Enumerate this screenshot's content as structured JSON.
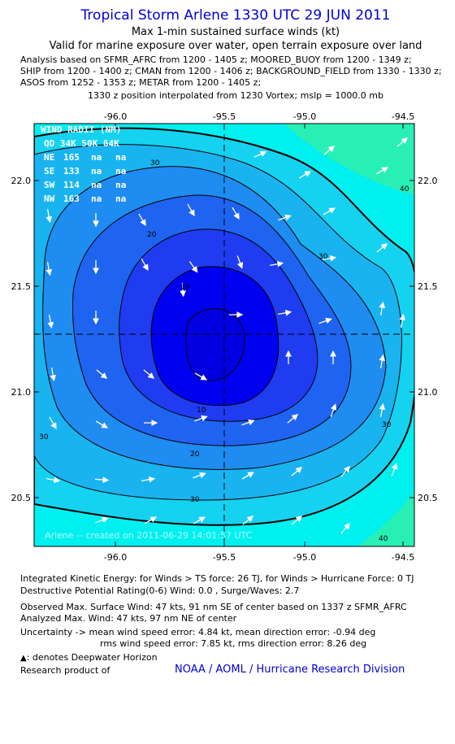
{
  "header": {
    "title": "Tropical Storm Arlene 1330 UTC 29 JUN 2011",
    "subtitle1": "Max 1-min sustained surface winds (kt)",
    "subtitle2": "Valid for marine exposure over water, open terrain exposure over land",
    "analysis_lines": [
      "Analysis based on SFMR_AFRC from 1200 - 1405 z; MOORED_BUOY from 1200 - 1349 z;",
      "SHIP from 1200 - 1400 z; CMAN from 1200 - 1406 z; BACKGROUND_FIELD from 1330 - 1330 z;",
      "ASOS from 1252 - 1353 z; METAR from 1200 - 1405 z;"
    ],
    "position_note": "1330 z position interpolated from 1230 Vortex; mslp = 1000.0 mb"
  },
  "map": {
    "x_ticks": [
      "-96.0",
      "-95.5",
      "-95.0",
      "-94.5"
    ],
    "y_ticks": [
      "22.0",
      "21.5",
      "21.0",
      "20.5"
    ],
    "wind_radii": {
      "title": "WIND RADII (NM)",
      "header": "QD  34K  50K  64K",
      "rows": [
        {
          "qd": "NE",
          "k34": "165",
          "k50": "na",
          "k64": "na"
        },
        {
          "qd": "SE",
          "k34": "133",
          "k50": "na",
          "k64": "na"
        },
        {
          "qd": "SW",
          "k34": "114",
          "k50": "na",
          "k64": "na"
        },
        {
          "qd": "NW",
          "k34": "163",
          "k50": "na",
          "k64": "na"
        }
      ]
    },
    "contour_labels": [
      "10",
      "20",
      "30",
      "40",
      "10",
      "20",
      "30",
      "30",
      "30",
      "40",
      "30"
    ],
    "watermark": "Arlene -- created on 2011-06-29 14:01:57 UTC",
    "colors": {
      "level_lt10": "#0000f0",
      "level_10_15": "#1f3cf0",
      "level_15_20": "#1e64f0",
      "level_20_25": "#1e8cf0",
      "level_25_30": "#19b4f0",
      "level_30_35": "#14d2f0",
      "level_35_40": "#00f0f0",
      "level_gt40": "#28f0b4"
    }
  },
  "footer": {
    "ike": "Integrated Kinetic Energy:  for Winds > TS force: 26 TJ,  for Winds > Hurricane Force: 0 TJ",
    "dpr": "Destructive Potential Rating(0-6)   Wind: 0.0 , Surge/Waves: 2.7",
    "observed": "Observed Max. Surface Wind: 47 kts, 91 nm SE of center based on 1337 z SFMR_AFRC",
    "analyzed": "Analyzed Max. Wind: 47 kts, 97 nm NE of center",
    "uncertainty1": "Uncertainty -> mean wind speed error: 4.84 kt,   mean direction error:  -0.94 deg",
    "uncertainty2": "rms wind speed error: 7.85 kt,   rms direction error: 8.26 deg",
    "deepwater": ": denotes Deepwater Horizon",
    "research": "Research product of",
    "org": "NOAA / AOML / Hurricane Research Division"
  }
}
